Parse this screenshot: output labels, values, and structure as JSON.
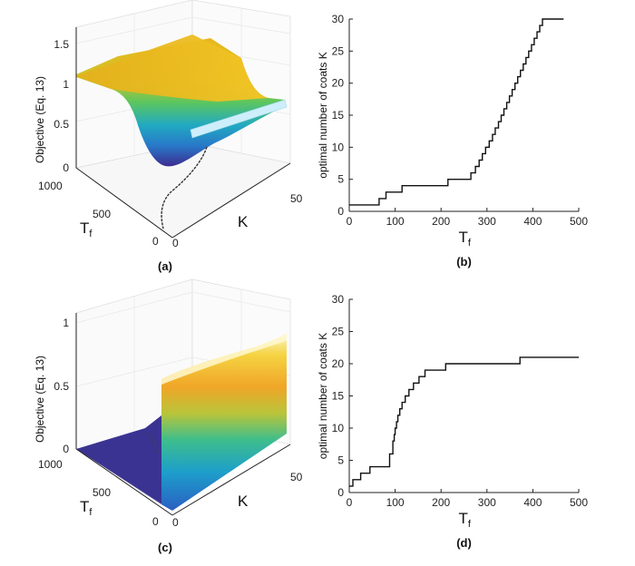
{
  "colors": {
    "axis": "#222222",
    "grid": "#e6e6e6",
    "step": "#111111",
    "surface_low": "#3e2a8d",
    "surface_mid": "#1ea0c8",
    "surface_green": "#4cc26a",
    "surface_high": "#f0c420",
    "surface_top": "#e8b51a",
    "floor": "#3a3190"
  },
  "chart_data": [
    {
      "type": "surface",
      "panel_label": "(a)",
      "zlabel": "Objective (Eq. 13)",
      "xlabel": "K",
      "ylabel_main": "T",
      "ylabel_sub": "f",
      "zticks": [
        "0",
        "0.5",
        "1",
        "1.5"
      ],
      "x_ticks": [
        "0",
        "50"
      ],
      "y_ticks": [
        "0",
        "500",
        "1000"
      ],
      "zlim": [
        0,
        1.5
      ],
      "plateau_level": 1.1,
      "valley_min": 0.05
    },
    {
      "type": "line",
      "panel_label": "(b)",
      "ylabel": "optimal number of coats K",
      "xlabel_main": "T",
      "xlabel_sub": "f",
      "xlim": [
        0,
        500
      ],
      "ylim": [
        0,
        30
      ],
      "xticks": [
        "0",
        "100",
        "200",
        "300",
        "400",
        "500"
      ],
      "yticks": [
        "0",
        "5",
        "10",
        "15",
        "20",
        "25",
        "30"
      ],
      "step_x": [
        0,
        65,
        65,
        80,
        80,
        115,
        115,
        215,
        215,
        265,
        265,
        275,
        275,
        283,
        283,
        290,
        290,
        297,
        297,
        305,
        305,
        312,
        312,
        318,
        318,
        325,
        325,
        331,
        331,
        337,
        337,
        343,
        343,
        349,
        349,
        355,
        355,
        361,
        361,
        367,
        367,
        373,
        373,
        379,
        379,
        385,
        385,
        391,
        391,
        397,
        397,
        403,
        403,
        409,
        409,
        415,
        415,
        421,
        421,
        427,
        427,
        433,
        433,
        439,
        439,
        445,
        445,
        451,
        451,
        457,
        457,
        463,
        463,
        467
      ],
      "step_y": [
        1,
        1,
        2,
        2,
        3,
        3,
        4,
        4,
        5,
        5,
        6,
        6,
        7,
        7,
        8,
        8,
        9,
        9,
        10,
        10,
        11,
        11,
        12,
        12,
        13,
        13,
        14,
        14,
        15,
        15,
        16,
        16,
        17,
        17,
        18,
        18,
        19,
        19,
        20,
        20,
        21,
        21,
        22,
        22,
        23,
        23,
        24,
        24,
        25,
        25,
        26,
        26,
        27,
        27,
        28,
        28,
        29,
        29,
        30,
        30,
        30,
        30,
        30,
        30,
        30,
        30,
        30,
        30,
        30,
        30,
        30,
        30,
        30,
        30
      ]
    },
    {
      "type": "surface",
      "panel_label": "(c)",
      "zlabel": "Objective (Eq. 13)",
      "xlabel": "K",
      "ylabel_main": "T",
      "ylabel_sub": "f",
      "zticks": [
        "0",
        "0.5",
        "1"
      ],
      "x_ticks": [
        "0",
        "50"
      ],
      "y_ticks": [
        "0",
        "500",
        "1000"
      ],
      "zlim": [
        0,
        1
      ],
      "wall_level": 0.78,
      "floor_level": 0
    },
    {
      "type": "line",
      "panel_label": "(d)",
      "ylabel": "optimal number of coats K",
      "xlabel_main": "T",
      "xlabel_sub": "f",
      "xlim": [
        0,
        500
      ],
      "ylim": [
        0,
        30
      ],
      "xticks": [
        "0",
        "100",
        "200",
        "300",
        "400",
        "500"
      ],
      "yticks": [
        "0",
        "5",
        "10",
        "15",
        "20",
        "25",
        "30"
      ],
      "step_x": [
        0,
        8,
        8,
        25,
        25,
        45,
        45,
        88,
        88,
        95,
        95,
        98,
        98,
        100,
        100,
        103,
        103,
        106,
        106,
        110,
        110,
        115,
        115,
        122,
        122,
        130,
        130,
        140,
        140,
        152,
        152,
        165,
        165,
        180,
        180,
        210,
        210,
        372,
        372,
        455,
        455,
        500
      ],
      "step_y": [
        1,
        1,
        2,
        2,
        3,
        3,
        4,
        4,
        6,
        6,
        8,
        8,
        9,
        9,
        10,
        10,
        11,
        11,
        12,
        12,
        13,
        13,
        14,
        14,
        15,
        15,
        16,
        16,
        17,
        17,
        18,
        18,
        19,
        19,
        19,
        19,
        20,
        20,
        21,
        21,
        21,
        21
      ]
    }
  ]
}
